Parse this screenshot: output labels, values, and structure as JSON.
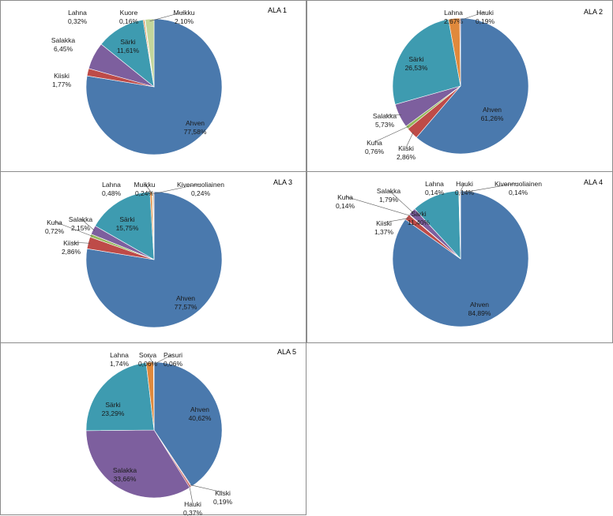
{
  "colors": {
    "Ahven": "#4a79ad",
    "Kiiski": "#be4b48",
    "Hauki": "#c0504d",
    "Salakka": "#7d5f9e",
    "Kuha": "#94b85c",
    "Särki": "#3e9bb0",
    "Lahna": "#e0893c",
    "Kuore": "#a6b8d8",
    "Muikku": "#c3d69b",
    "Kivennuoliainen": "#d8a4a4",
    "Sorva": "#9db3d4",
    "Pasuri": "#c6d9a0"
  },
  "chart_data": [
    {
      "type": "pie",
      "title": "ALA 1",
      "slices": [
        {
          "label": "Ahven",
          "value": 77.58,
          "text": "77,58%"
        },
        {
          "label": "Kiiski",
          "value": 1.77,
          "text": "1,77%"
        },
        {
          "label": "Salakka",
          "value": 6.45,
          "text": "6,45%"
        },
        {
          "label": "Särki",
          "value": 11.61,
          "text": "11,61%"
        },
        {
          "label": "Lahna",
          "value": 0.32,
          "text": "0,32%"
        },
        {
          "label": "Kuore",
          "value": 0.16,
          "text": "0,16%"
        },
        {
          "label": "Muikku",
          "value": 2.1,
          "text": "2,10%"
        }
      ]
    },
    {
      "type": "pie",
      "title": "ALA 2",
      "slices": [
        {
          "label": "Ahven",
          "value": 61.26,
          "text": "61,26%"
        },
        {
          "label": "Kiiski",
          "value": 2.86,
          "text": "2,86%"
        },
        {
          "label": "Kuha",
          "value": 0.76,
          "text": "0,76%"
        },
        {
          "label": "Salakka",
          "value": 5.73,
          "text": "5,73%"
        },
        {
          "label": "Särki",
          "value": 26.53,
          "text": "26,53%"
        },
        {
          "label": "Lahna",
          "value": 2.67,
          "text": "2,67%"
        },
        {
          "label": "Hauki",
          "value": 0.19,
          "text": "0,19%"
        }
      ]
    },
    {
      "type": "pie",
      "title": "ALA 3",
      "slices": [
        {
          "label": "Ahven",
          "value": 77.57,
          "text": "77,57%"
        },
        {
          "label": "Kiiski",
          "value": 2.86,
          "text": "2,86%"
        },
        {
          "label": "Kuha",
          "value": 0.72,
          "text": "0,72%"
        },
        {
          "label": "Salakka",
          "value": 2.15,
          "text": "2,15%"
        },
        {
          "label": "Särki",
          "value": 15.75,
          "text": "15,75%"
        },
        {
          "label": "Lahna",
          "value": 0.48,
          "text": "0,48%"
        },
        {
          "label": "Muikku",
          "value": 0.24,
          "text": "0,24%"
        },
        {
          "label": "Kivennuoliainen",
          "value": 0.24,
          "text": "0,24%"
        }
      ]
    },
    {
      "type": "pie",
      "title": "ALA 4",
      "slices": [
        {
          "label": "Ahven",
          "value": 84.89,
          "text": "84,89%"
        },
        {
          "label": "Kiiski",
          "value": 1.37,
          "text": "1,37%"
        },
        {
          "label": "Kuha",
          "value": 0.14,
          "text": "0,14%"
        },
        {
          "label": "Salakka",
          "value": 1.79,
          "text": "1,79%"
        },
        {
          "label": "Särki",
          "value": 11.4,
          "text": "11,40%"
        },
        {
          "label": "Lahna",
          "value": 0.14,
          "text": "0,14%"
        },
        {
          "label": "Hauki",
          "value": 0.14,
          "text": "0,14%"
        },
        {
          "label": "Kivennuoliainen",
          "value": 0.14,
          "text": "0,14%"
        }
      ]
    },
    {
      "type": "pie",
      "title": "ALA 5",
      "slices": [
        {
          "label": "Ahven",
          "value": 40.62,
          "text": "40,62%"
        },
        {
          "label": "Kiiski",
          "value": 0.19,
          "text": "0,19%"
        },
        {
          "label": "Hauki",
          "value": 0.37,
          "text": "0,37%"
        },
        {
          "label": "Salakka",
          "value": 33.66,
          "text": "33,66%"
        },
        {
          "label": "Särki",
          "value": 23.29,
          "text": "23,29%"
        },
        {
          "label": "Lahna",
          "value": 1.74,
          "text": "1,74%"
        },
        {
          "label": "Sorva",
          "value": 0.06,
          "text": "0,06%"
        },
        {
          "label": "Pasuri",
          "value": 0.06,
          "text": "0,06%"
        }
      ]
    }
  ]
}
